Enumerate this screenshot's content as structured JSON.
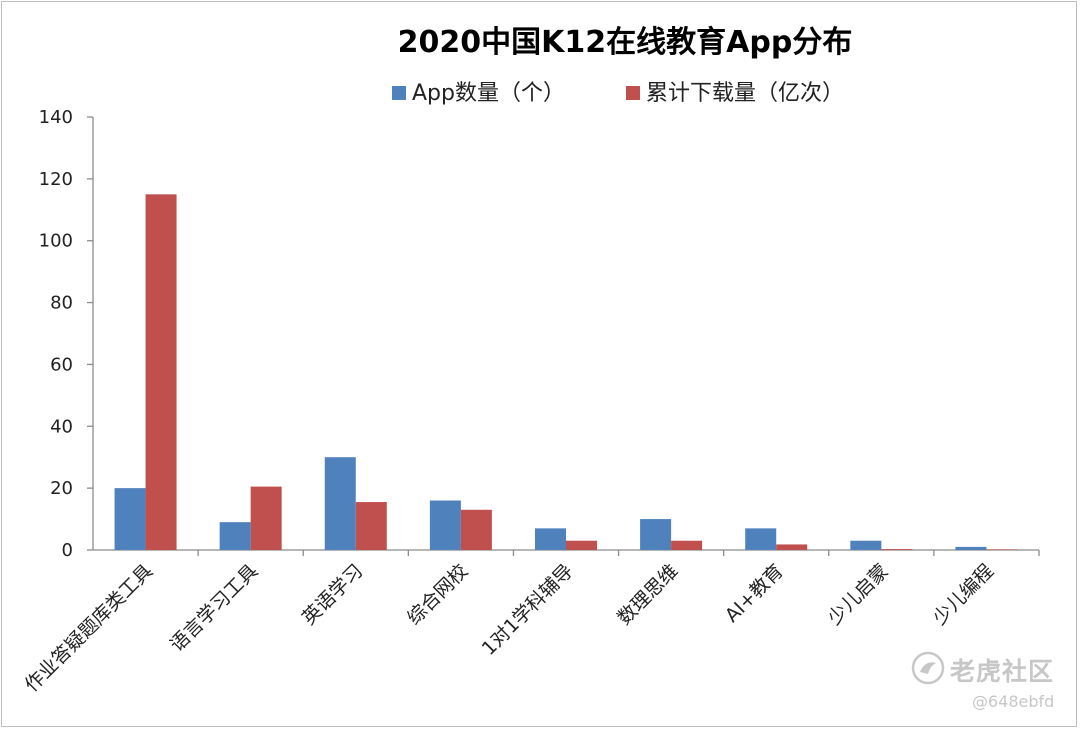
{
  "chart_data": {
    "type": "bar",
    "title": "2020中国K12在线教育App分布",
    "categories": [
      "作业答疑题库类工具",
      "语言学习工具",
      "英语学习",
      "综合网校",
      "1对1学科辅导",
      "数理思维",
      "AI+教育",
      "少儿启蒙",
      "少儿编程"
    ],
    "series": [
      {
        "name": "App数量（个）",
        "color": "#4f81bd",
        "values": [
          20,
          9,
          30,
          16,
          7,
          10,
          7,
          3,
          1
        ]
      },
      {
        "name": "累计下载量（亿次）",
        "color": "#c0504d",
        "values": [
          115,
          20.5,
          15.5,
          13,
          3,
          3,
          1.8,
          0.3,
          0.2
        ]
      }
    ],
    "ylim": [
      0,
      140
    ],
    "yticks": [
      0,
      20,
      40,
      60,
      80,
      100,
      120,
      140
    ],
    "xlabel": "",
    "ylabel": "",
    "grid": false,
    "legend_position": "top"
  },
  "watermark": {
    "brand": "老虎社区",
    "handle": "@648ebfd"
  }
}
